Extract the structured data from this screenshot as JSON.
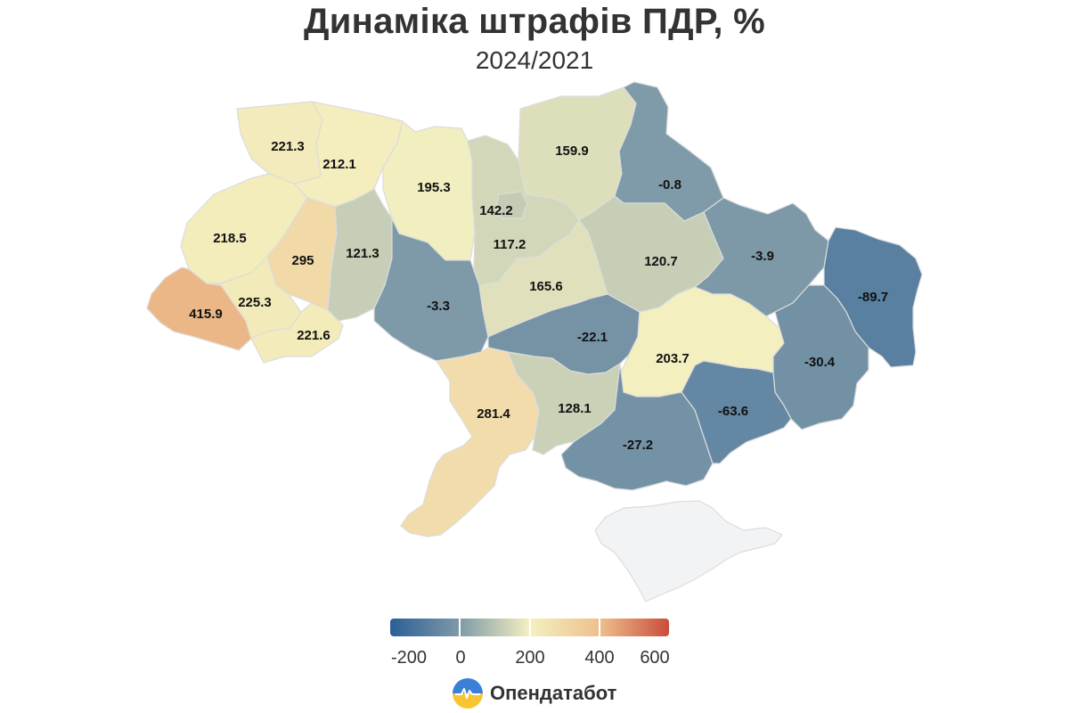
{
  "title": "Динаміка штрафів ПДР, %",
  "subtitle": "2024/2021",
  "colors": {
    "scale": [
      "#2b5f97",
      "#7f9aa8",
      "#f4f0c0",
      "#eec08d",
      "#c94d3c"
    ],
    "no_data": "#f2f3f4",
    "border": "#dcdcdc"
  },
  "chart_data": {
    "type": "choropleth",
    "value_unit": "%",
    "regions": [
      {
        "id": "volyn",
        "value": 221.3
      },
      {
        "id": "rivne",
        "value": 212.1
      },
      {
        "id": "zhytomyr",
        "value": 195.3
      },
      {
        "id": "kyiv-oblast",
        "value": 142.2
      },
      {
        "id": "kyiv-city",
        "value": 117.2
      },
      {
        "id": "chernihiv",
        "value": 159.9
      },
      {
        "id": "sumy",
        "value": -0.8
      },
      {
        "id": "lviv",
        "value": 218.5
      },
      {
        "id": "ternopil",
        "value": 295
      },
      {
        "id": "khmelnytskyi",
        "value": 121.3
      },
      {
        "id": "zakarpattia",
        "value": 415.9
      },
      {
        "id": "ivano-frankivsk",
        "value": 225.3
      },
      {
        "id": "chernivtsi",
        "value": 221.6
      },
      {
        "id": "vinnytsia",
        "value": -3.3
      },
      {
        "id": "cherkasy",
        "value": 165.6
      },
      {
        "id": "poltava",
        "value": 120.7
      },
      {
        "id": "kharkiv",
        "value": -3.9
      },
      {
        "id": "luhansk",
        "value": -89.7
      },
      {
        "id": "kirovohrad",
        "value": -22.1
      },
      {
        "id": "dnipropetrovsk",
        "value": 203.7
      },
      {
        "id": "donetsk",
        "value": -30.4
      },
      {
        "id": "odesa",
        "value": 281.4
      },
      {
        "id": "mykolaiv",
        "value": 128.1
      },
      {
        "id": "kherson",
        "value": -27.2
      },
      {
        "id": "zaporizhzhia",
        "value": -63.6
      },
      {
        "id": "crimea",
        "value": null
      }
    ],
    "labels": [
      "221.3",
      "212.1",
      "195.3",
      "142.2",
      "117.2",
      "159.9",
      "-0.8",
      "218.5",
      "295",
      "121.3",
      "415.9",
      "225.3",
      "221.6",
      "-3.3",
      "165.6",
      "120.7",
      "-3.9",
      "-89.7",
      "-22.1",
      "203.7",
      "-30.4",
      "281.4",
      "128.1",
      "-27.2",
      "-63.6"
    ],
    "legend": {
      "ticks": [
        "-200",
        "0",
        "200",
        "400",
        "600"
      ],
      "range": [
        -200,
        600
      ]
    }
  },
  "brand": {
    "name": "Опендатабот"
  }
}
